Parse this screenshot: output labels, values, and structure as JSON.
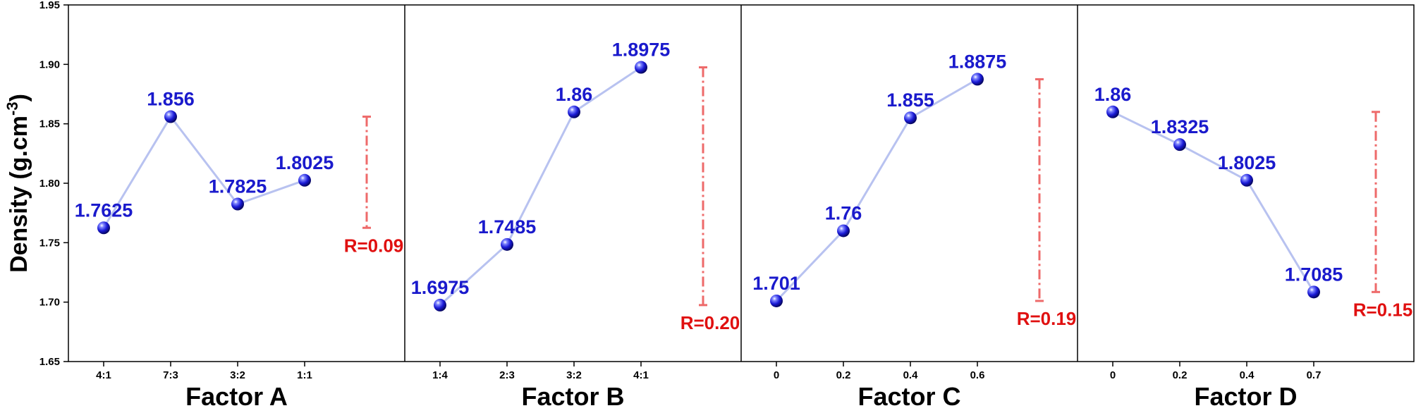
{
  "chart_data": {
    "type": "line",
    "ylabel_main": "Density (g.cm",
    "ylabel_sup": "-3",
    "ylabel_close": ")",
    "ylim": [
      1.65,
      1.95
    ],
    "yticks": [
      "1.65",
      "1.70",
      "1.75",
      "1.80",
      "1.85",
      "1.90",
      "1.95"
    ],
    "colors": {
      "points": "#1a1ad6",
      "line": "#b8c2f0",
      "labels": "#1a1acc",
      "range": "#ee6a6a",
      "range_label": "#e01010"
    },
    "panels": [
      {
        "name": "Factor A",
        "categories": [
          "4:1",
          "7:3",
          "3:2",
          "1:1"
        ],
        "values": [
          1.7625,
          1.856,
          1.7825,
          1.8025
        ],
        "value_labels": [
          "1.7625",
          "1.856",
          "1.7825",
          "1.8025"
        ],
        "range_label": "R=0.09"
      },
      {
        "name": "Factor B",
        "categories": [
          "1:4",
          "2:3",
          "3:2",
          "4:1"
        ],
        "values": [
          1.6975,
          1.7485,
          1.86,
          1.8975
        ],
        "value_labels": [
          "1.6975",
          "1.7485",
          "1.86",
          "1.8975"
        ],
        "range_label": "R=0.20"
      },
      {
        "name": "Factor C",
        "categories": [
          "0",
          "0.2",
          "0.4",
          "0.6"
        ],
        "values": [
          1.701,
          1.76,
          1.855,
          1.8875
        ],
        "value_labels": [
          "1.701",
          "1.76",
          "1.855",
          "1.8875"
        ],
        "range_label": "R=0.19"
      },
      {
        "name": "Factor D",
        "categories": [
          "0",
          "0.2",
          "0.4",
          "0.7"
        ],
        "values": [
          1.86,
          1.8325,
          1.8025,
          1.7085
        ],
        "value_labels": [
          "1.86",
          "1.8325",
          "1.8025",
          "1.7085"
        ],
        "range_label": "R=0.15"
      }
    ]
  }
}
